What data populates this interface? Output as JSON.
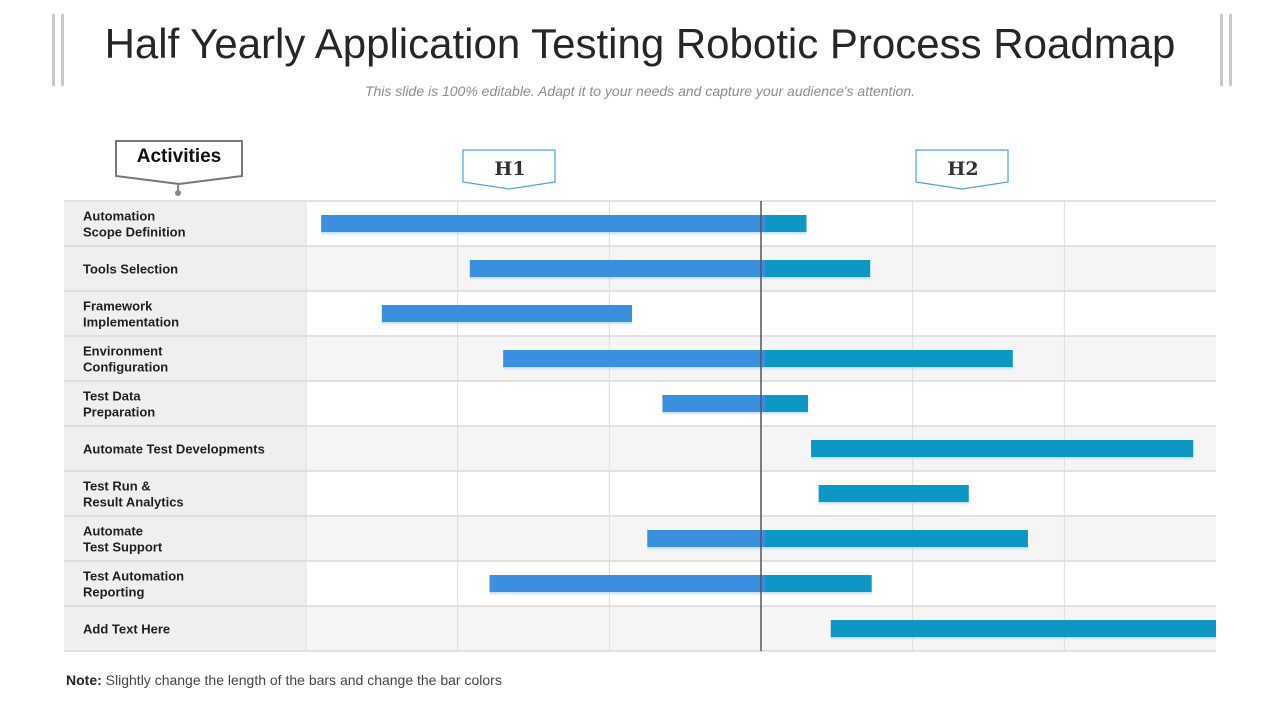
{
  "title": "Half Yearly Application Testing Robotic Process Roadmap",
  "subtitle": "This slide is 100% editable. Adapt it to your needs and capture your audience's attention.",
  "activities_header": "Activities",
  "halves": [
    "H1",
    "H2"
  ],
  "note_label": "Note:",
  "note_text": "Slightly change the length of the bars and change the bar colors",
  "colors": {
    "h1_bar": "#3a8fdf",
    "h2_bar": "#0c97c4",
    "divider": "#555555",
    "header_border": "#4aa3d8"
  },
  "chart_data": {
    "type": "bar",
    "orientation": "horizontal-gantt",
    "time_axis": {
      "unit": "month",
      "range": [
        0,
        6
      ],
      "divider_at": 3
    },
    "grid": true,
    "tasks": [
      {
        "name": "Automation\nScope Definition",
        "start": 0.1,
        "end": 3.3
      },
      {
        "name": "Tools Selection",
        "start": 1.08,
        "end": 3.72
      },
      {
        "name": "Framework\nImplementation",
        "start": 0.5,
        "end": 2.15
      },
      {
        "name": "Environment\nConfiguration",
        "start": 1.3,
        "end": 4.66
      },
      {
        "name": "Test Data\nPreparation",
        "start": 2.35,
        "end": 3.31
      },
      {
        "name": "Automate Test Developments",
        "start": 3.33,
        "end": 5.85
      },
      {
        "name": "Test Run &\nResult Analytics",
        "start": 3.38,
        "end": 4.37
      },
      {
        "name": "Automate\nTest Support",
        "start": 2.25,
        "end": 4.76
      },
      {
        "name": "Test Automation\nReporting",
        "start": 1.21,
        "end": 3.73
      },
      {
        "name": "Add Text Here",
        "start": 3.46,
        "end": 6.0
      }
    ]
  }
}
